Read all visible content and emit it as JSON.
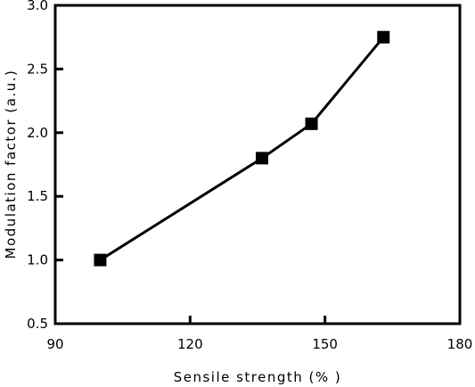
{
  "chart_data": {
    "type": "line",
    "title": "",
    "xlabel": "Sensile strength (% )",
    "ylabel": "Modulation factor (a.u.)",
    "xlim": [
      90,
      180
    ],
    "ylim": [
      0.5,
      3.0
    ],
    "xticks": [
      "90",
      "120",
      "150",
      "180"
    ],
    "yticks": [
      "0.5",
      "1.0",
      "1.5",
      "2.0",
      "2.5",
      "3.0"
    ],
    "grid": false,
    "legend": "none",
    "marker": "filled-square",
    "color": "#000000",
    "series": [
      {
        "x": [
          100,
          136,
          147,
          163
        ],
        "y": [
          1.0,
          1.8,
          2.07,
          2.75
        ]
      }
    ]
  }
}
